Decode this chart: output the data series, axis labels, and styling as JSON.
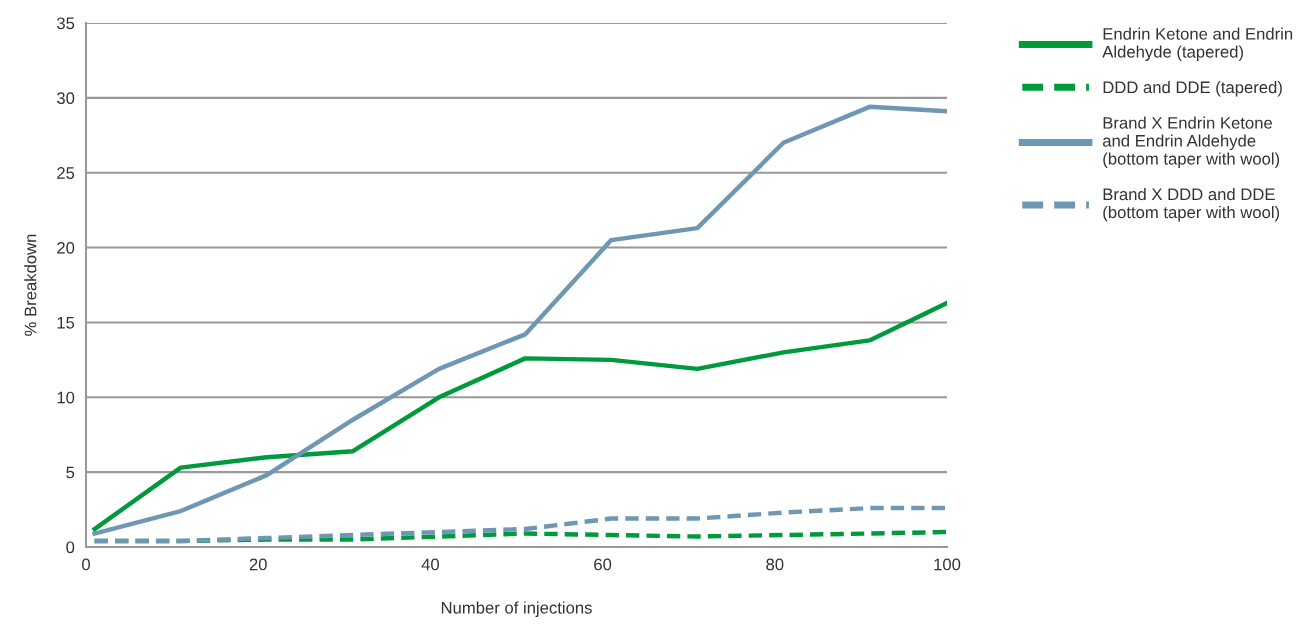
{
  "chart_data": {
    "type": "line",
    "xlabel": "Number of injections",
    "ylabel": "% Breakdown",
    "x": [
      1,
      11,
      21,
      31,
      41,
      51,
      61,
      71,
      81,
      91,
      100
    ],
    "series": [
      {
        "name": "Endrin Ketone and Endrin Aldehyde (tapered)",
        "color": "#009a3d",
        "line_style": "solid",
        "values": [
          1.2,
          5.3,
          6.0,
          6.4,
          10.0,
          12.6,
          12.5,
          11.9,
          13.0,
          13.8,
          16.3
        ]
      },
      {
        "name": "DDD and DDE (tapered)",
        "color": "#009a3d",
        "line_style": "dashed",
        "values": [
          0.4,
          0.4,
          0.5,
          0.5,
          0.7,
          0.9,
          0.8,
          0.7,
          0.8,
          0.9,
          1.0
        ]
      },
      {
        "name": "Brand X Endrin Ketone and Endrin Aldehyde (bottom taper with wool)",
        "color": "#6e97b3",
        "line_style": "solid",
        "values": [
          0.9,
          2.4,
          4.8,
          8.5,
          11.9,
          14.2,
          20.5,
          21.3,
          27.0,
          29.4,
          29.1
        ]
      },
      {
        "name": "Brand X DDD and DDE (bottom taper with wool)",
        "color": "#6e97b3",
        "line_style": "dashed",
        "values": [
          0.4,
          0.4,
          0.6,
          0.8,
          1.0,
          1.2,
          1.9,
          1.9,
          2.3,
          2.6,
          2.6
        ]
      }
    ],
    "xlim": [
      0,
      100
    ],
    "xticks": [
      0,
      20,
      40,
      60,
      80,
      100
    ],
    "ylim": [
      0,
      35
    ],
    "yticks": [
      0,
      5,
      10,
      15,
      20,
      25,
      30,
      35
    ],
    "grid": "y",
    "legend": "top right",
    "marker": "none"
  }
}
